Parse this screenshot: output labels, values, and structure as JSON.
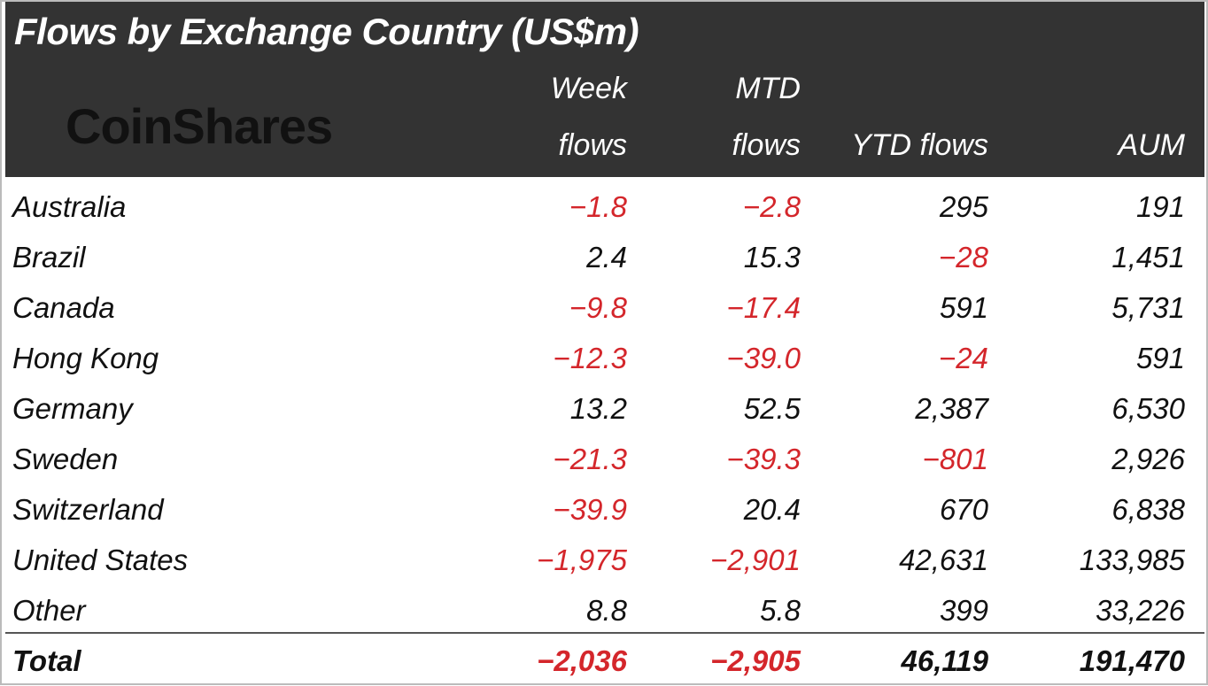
{
  "header": {
    "title": "Flows by Exchange Country (US$m)",
    "logo": "CoinShares"
  },
  "table": {
    "columns": [
      "Week flows",
      "MTD flows",
      "YTD flows",
      "AUM"
    ],
    "rows": [
      [
        "Australia",
        "−1.8",
        "−2.8",
        "295",
        "191"
      ],
      [
        "Brazil",
        "2.4",
        "15.3",
        "−28",
        "1,451"
      ],
      [
        "Canada",
        "−9.8",
        "−17.4",
        "591",
        "5,731"
      ],
      [
        "Hong Kong",
        "−12.3",
        "−39.0",
        "−24",
        "591"
      ],
      [
        "Germany",
        "13.2",
        "52.5",
        "2,387",
        "6,530"
      ],
      [
        "Sweden",
        "−21.3",
        "−39.3",
        "−801",
        "2,926"
      ],
      [
        "Switzerland",
        "−39.9",
        "20.4",
        "670",
        "6,838"
      ],
      [
        "United States",
        "−1,975",
        "−2,901",
        "42,631",
        "133,985"
      ],
      [
        "Other",
        "8.8",
        "5.8",
        "399",
        "33,226"
      ]
    ],
    "total": [
      "Total",
      "−2,036",
      "−2,905",
      "46,119",
      "191,470"
    ]
  }
}
